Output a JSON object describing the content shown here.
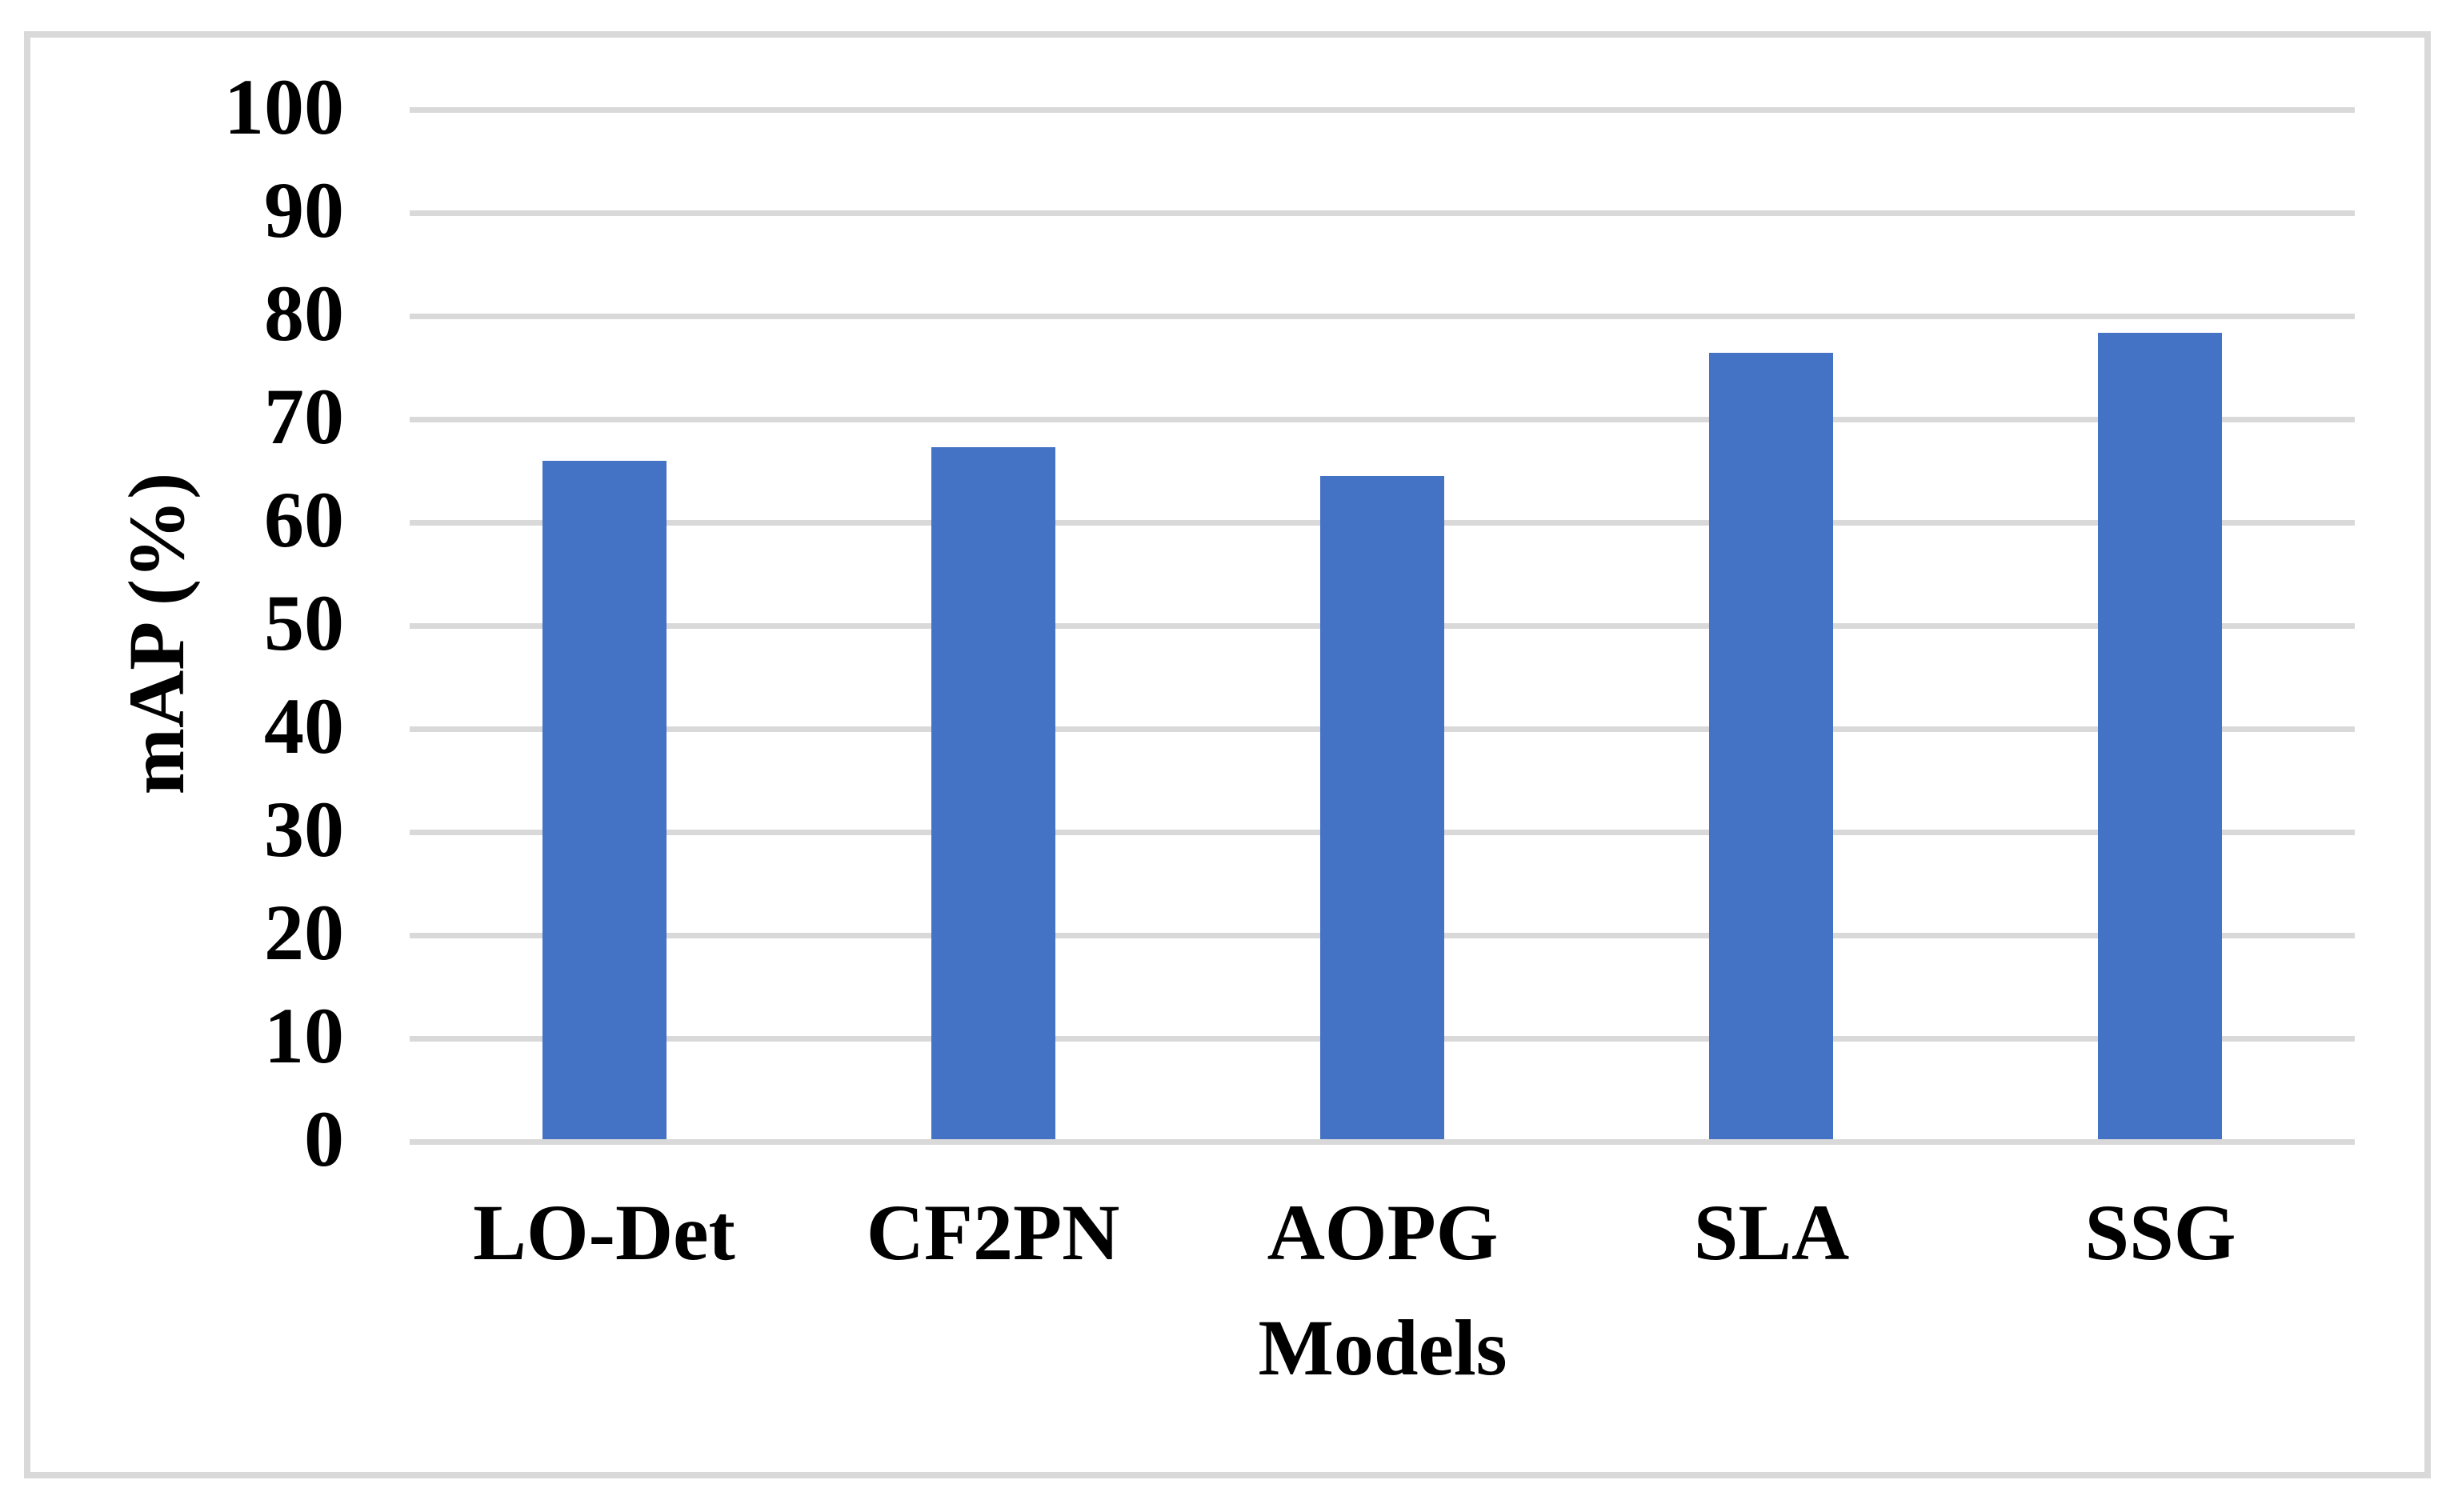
{
  "chart_data": {
    "type": "bar",
    "title": "",
    "categories": [
      "LO-Det",
      "CF2PN",
      "AOPG",
      "SLA",
      "SSG"
    ],
    "values": [
      66,
      67.3,
      64.5,
      76.4,
      78.4
    ],
    "xlabel": "Models",
    "ylabel": "mAP (%)",
    "ylim": [
      0,
      100
    ],
    "ytick_step": 10,
    "ytick_labels": [
      "0",
      "10",
      "20",
      "30",
      "40",
      "50",
      "60",
      "70",
      "80",
      "90",
      "100"
    ],
    "grid": "horizontal-only",
    "legend": "none",
    "bar_color": "#4472C4",
    "gridline_color": "#D9D9D9",
    "frame_color": "#D9D9D9",
    "text_color": "#000000",
    "background_color": "#FFFFFF"
  }
}
